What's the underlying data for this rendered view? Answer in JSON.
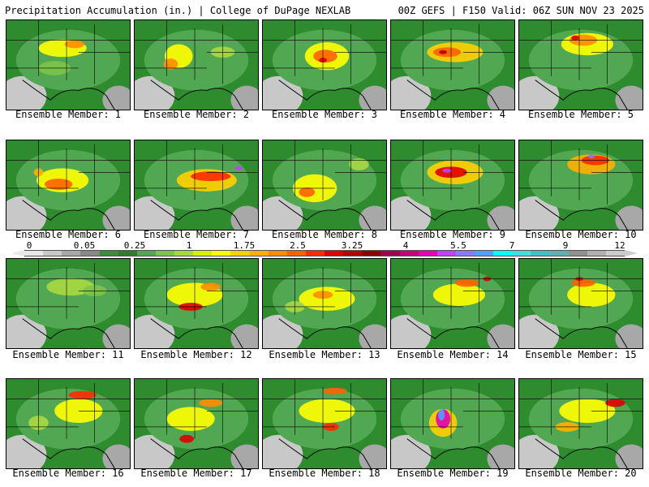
{
  "header": {
    "title_left": "Precipitation Accumulation (in.) | College of DuPage NEXLAB",
    "title_right": "00Z GEFS | F150 Valid: 06Z SUN NOV 23 2025"
  },
  "member_label_prefix": "Ensemble Member:",
  "members": [
    {
      "number": "1"
    },
    {
      "number": "2"
    },
    {
      "number": "3"
    },
    {
      "number": "4"
    },
    {
      "number": "5"
    },
    {
      "number": "6"
    },
    {
      "number": "7"
    },
    {
      "number": "8"
    },
    {
      "number": "9"
    },
    {
      "number": "10"
    },
    {
      "number": "11"
    },
    {
      "number": "12"
    },
    {
      "number": "13"
    },
    {
      "number": "14"
    },
    {
      "number": "15"
    },
    {
      "number": "16"
    },
    {
      "number": "17"
    },
    {
      "number": "18"
    },
    {
      "number": "19"
    },
    {
      "number": "20"
    }
  ],
  "colorbar": {
    "tick_labels": [
      "0",
      "0.05",
      "0.25",
      "1",
      "1.75",
      "2.5",
      "3.25",
      "4",
      "5.5",
      "7",
      "9",
      "12"
    ],
    "colors": [
      "#e8e8e8",
      "#c8c8c8",
      "#a8a8a8",
      "#888888",
      "#3c8c3c",
      "#2e7d2e",
      "#52a852",
      "#7cc44a",
      "#a8d840",
      "#d8f000",
      "#ffff00",
      "#ffd000",
      "#ffb000",
      "#ff8c00",
      "#ff6000",
      "#ff2a00",
      "#e00000",
      "#b40000",
      "#8a0000",
      "#a0004a",
      "#c80078",
      "#e600b4",
      "#c040ff",
      "#8c78ff",
      "#50a0ff",
      "#00ffff",
      "#40e0e0",
      "#40c0c0",
      "#60b0b0",
      "#909090",
      "#b0b0b0",
      "#cccccc"
    ]
  }
}
